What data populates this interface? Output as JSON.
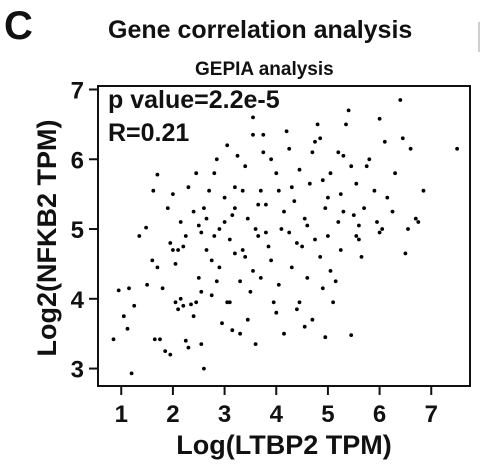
{
  "panel_label": "C",
  "chart_data": {
    "type": "scatter",
    "title": "Gene correlation analysis",
    "subtitle": "GEPIA analysis",
    "xlabel": "Log(LTBP2 TPM)",
    "ylabel": "Log2(NFKB2 TPM)",
    "xlim": [
      0.55,
      7.75
    ],
    "ylim": [
      2.75,
      7.05
    ],
    "xticks": [
      "1",
      "2",
      "3",
      "4",
      "5",
      "6",
      "7"
    ],
    "yticks": [
      "3",
      "4",
      "5",
      "6",
      "7"
    ],
    "annotations": [
      "p value=2.2e-5",
      "R=0.21"
    ],
    "grid": false,
    "point_color": "#000000",
    "points": [
      [
        1.2,
        2.93
      ],
      [
        0.85,
        3.42
      ],
      [
        1.12,
        3.57
      ],
      [
        1.05,
        3.75
      ],
      [
        0.95,
        4.12
      ],
      [
        1.15,
        4.15
      ],
      [
        1.25,
        3.9
      ],
      [
        1.35,
        4.9
      ],
      [
        1.48,
        5.02
      ],
      [
        1.5,
        4.2
      ],
      [
        1.6,
        4.55
      ],
      [
        1.7,
        4.45
      ],
      [
        1.75,
        3.42
      ],
      [
        1.85,
        3.25
      ],
      [
        1.65,
        3.42
      ],
      [
        1.8,
        4.15
      ],
      [
        1.95,
        3.2
      ],
      [
        1.62,
        5.55
      ],
      [
        1.7,
        5.78
      ],
      [
        1.9,
        5.3
      ],
      [
        1.95,
        4.8
      ],
      [
        2.05,
        4.5
      ],
      [
        2.0,
        4.7
      ],
      [
        2.1,
        4.7
      ],
      [
        2.15,
        4.0
      ],
      [
        2.05,
        3.95
      ],
      [
        2.1,
        3.85
      ],
      [
        2.2,
        4.75
      ],
      [
        2.25,
        4.9
      ],
      [
        2.15,
        5.1
      ],
      [
        2.3,
        5.6
      ],
      [
        2.45,
        5.8
      ],
      [
        2.35,
        3.92
      ],
      [
        2.5,
        4.3
      ],
      [
        2.45,
        3.95
      ],
      [
        2.55,
        4.95
      ],
      [
        2.6,
        5.3
      ],
      [
        2.7,
        5.55
      ],
      [
        2.25,
        3.4
      ],
      [
        2.3,
        3.3
      ],
      [
        2.55,
        3.35
      ],
      [
        2.6,
        3.0
      ],
      [
        2.2,
        3.9
      ],
      [
        2.4,
        3.75
      ],
      [
        2.55,
        4.1
      ],
      [
        2.65,
        4.7
      ],
      [
        2.75,
        4.55
      ],
      [
        2.8,
        4.9
      ],
      [
        2.9,
        5.0
      ],
      [
        2.85,
        4.25
      ],
      [
        2.95,
        3.65
      ],
      [
        3.05,
        3.95
      ],
      [
        3.1,
        4.85
      ],
      [
        3.15,
        5.2
      ],
      [
        3.2,
        5.6
      ],
      [
        3.05,
        6.2
      ],
      [
        3.25,
        6.05
      ],
      [
        3.2,
        5.3
      ],
      [
        3.35,
        4.7
      ],
      [
        3.4,
        4.6
      ],
      [
        3.3,
        3.5
      ],
      [
        3.45,
        3.7
      ],
      [
        3.5,
        4.1
      ],
      [
        3.55,
        4.4
      ],
      [
        3.6,
        5.0
      ],
      [
        3.65,
        5.35
      ],
      [
        3.7,
        5.55
      ],
      [
        3.55,
        6.35
      ],
      [
        3.75,
        6.1
      ],
      [
        3.8,
        4.95
      ],
      [
        3.85,
        4.75
      ],
      [
        3.9,
        4.55
      ],
      [
        3.95,
        3.95
      ],
      [
        4.0,
        3.8
      ],
      [
        4.05,
        4.2
      ],
      [
        4.1,
        5.0
      ],
      [
        4.15,
        5.25
      ],
      [
        4.2,
        6.4
      ],
      [
        4.25,
        6.15
      ],
      [
        4.3,
        5.6
      ],
      [
        4.35,
        5.4
      ],
      [
        4.4,
        4.8
      ],
      [
        4.5,
        4.75
      ],
      [
        4.55,
        3.6
      ],
      [
        4.45,
        3.95
      ],
      [
        4.6,
        5.05
      ],
      [
        4.65,
        5.65
      ],
      [
        4.7,
        6.1
      ],
      [
        4.75,
        6.25
      ],
      [
        4.85,
        6.3
      ],
      [
        4.9,
        5.7
      ],
      [
        4.95,
        5.3
      ],
      [
        5.0,
        4.9
      ],
      [
        5.05,
        4.4
      ],
      [
        5.1,
        3.95
      ],
      [
        5.15,
        4.25
      ],
      [
        5.2,
        5.1
      ],
      [
        5.25,
        5.5
      ],
      [
        5.3,
        6.05
      ],
      [
        5.4,
        6.7
      ],
      [
        5.45,
        5.9
      ],
      [
        5.5,
        5.2
      ],
      [
        5.55,
        4.9
      ],
      [
        5.45,
        3.48
      ],
      [
        5.6,
        4.85
      ],
      [
        5.7,
        5.3
      ],
      [
        5.75,
        5.9
      ],
      [
        5.8,
        6.0
      ],
      [
        5.9,
        5.55
      ],
      [
        5.95,
        5.1
      ],
      [
        6.0,
        4.95
      ],
      [
        6.05,
        5.0
      ],
      [
        5.2,
        6.1
      ],
      [
        5.35,
        6.5
      ],
      [
        5.6,
        5.05
      ],
      [
        6.25,
        5.25
      ],
      [
        6.15,
        5.45
      ],
      [
        6.3,
        5.8
      ],
      [
        6.4,
        6.85
      ],
      [
        6.45,
        6.3
      ],
      [
        6.5,
        4.65
      ],
      [
        6.55,
        5.0
      ],
      [
        6.6,
        6.15
      ],
      [
        6.7,
        5.15
      ],
      [
        6.75,
        5.1
      ],
      [
        6.85,
        5.55
      ],
      [
        7.5,
        6.15
      ],
      [
        6.0,
        6.58
      ],
      [
        6.1,
        6.25
      ],
      [
        2.5,
        5.05
      ],
      [
        2.8,
        5.8
      ],
      [
        3.0,
        5.1
      ],
      [
        3.4,
        5.9
      ],
      [
        3.7,
        4.3
      ],
      [
        4.0,
        5.8
      ],
      [
        4.3,
        4.45
      ],
      [
        4.6,
        4.3
      ],
      [
        4.85,
        4.6
      ],
      [
        5.05,
        5.8
      ],
      [
        3.55,
        6.6
      ],
      [
        4.8,
        6.5
      ],
      [
        3.1,
        3.95
      ],
      [
        3.3,
        4.25
      ],
      [
        4.15,
        3.5
      ],
      [
        4.4,
        3.85
      ],
      [
        2.75,
        4.05
      ],
      [
        2.9,
        4.45
      ],
      [
        3.2,
        4.65
      ],
      [
        3.45,
        5.15
      ],
      [
        3.8,
        5.35
      ],
      [
        4.05,
        5.55
      ],
      [
        4.25,
        4.95
      ],
      [
        4.55,
        5.15
      ],
      [
        4.75,
        4.85
      ],
      [
        5.0,
        5.45
      ],
      [
        5.3,
        5.25
      ],
      [
        5.65,
        4.6
      ],
      [
        2.65,
        5.15
      ],
      [
        3.0,
        5.45
      ],
      [
        3.35,
        5.55
      ],
      [
        3.65,
        4.9
      ],
      [
        4.45,
        5.85
      ],
      [
        4.9,
        4.15
      ],
      [
        5.25,
        4.7
      ],
      [
        2.0,
        5.5
      ],
      [
        2.4,
        5.25
      ],
      [
        3.9,
        6.0
      ],
      [
        4.7,
        3.7
      ],
      [
        3.6,
        3.35
      ],
      [
        3.15,
        3.55
      ],
      [
        4.95,
        3.45
      ],
      [
        5.55,
        5.65
      ],
      [
        2.85,
        6.0
      ],
      [
        3.75,
        6.35
      ]
    ]
  }
}
